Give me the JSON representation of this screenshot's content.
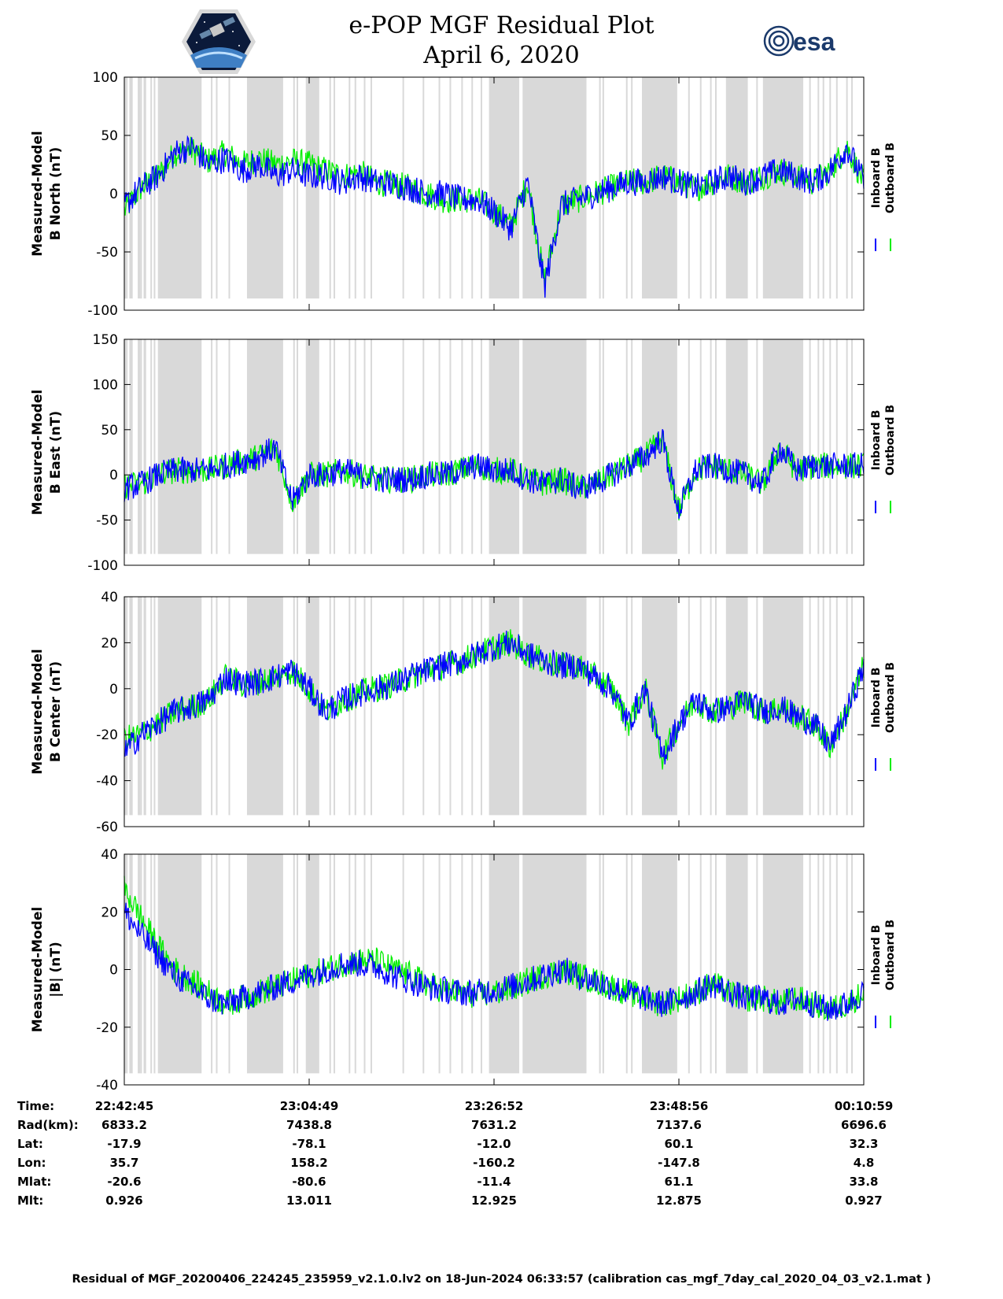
{
  "header": {
    "title": "e-POP MGF Residual Plot",
    "date": "April 6, 2020",
    "logo_left": "cassiope-mission-patch",
    "logo_right": "esa",
    "logo_right_text": "esa"
  },
  "colors": {
    "inboard": "#0000ff",
    "outboard": "#00ee00",
    "shading": "#d9d9d9"
  },
  "chart_data": [
    {
      "type": "line",
      "ylabel_line1": "Measured-Model",
      "ylabel_line2": "B North (nT)",
      "ylim": [
        -100,
        100
      ],
      "yticks": [
        100,
        50,
        0,
        -50,
        -100
      ],
      "tick_labels": [
        "100",
        "50",
        "0",
        "-50",
        "-100"
      ],
      "legend": [
        "Inboard B",
        "Outboard B"
      ],
      "legend_placement": "right",
      "x": [
        0,
        2,
        4,
        6,
        8,
        10,
        12,
        14,
        16,
        18,
        20,
        22,
        24,
        26,
        28,
        30,
        32,
        34,
        36,
        38,
        40,
        42,
        44,
        46,
        48,
        50,
        52,
        54,
        56,
        58,
        60,
        62,
        64,
        66,
        68,
        70,
        72,
        74,
        76,
        78,
        80,
        82,
        84,
        86,
        88
      ],
      "series": [
        {
          "name": "Inboard B",
          "values": [
            -10,
            5,
            15,
            35,
            40,
            25,
            30,
            20,
            25,
            15,
            20,
            15,
            15,
            10,
            15,
            10,
            8,
            5,
            0,
            0,
            -5,
            -5,
            -15,
            -30,
            10,
            -80,
            -10,
            -5,
            0,
            5,
            10,
            10,
            15,
            10,
            5,
            10,
            15,
            10,
            15,
            20,
            15,
            10,
            20,
            40,
            10
          ]
        },
        {
          "name": "Outboard B",
          "values": [
            -15,
            5,
            15,
            35,
            38,
            28,
            35,
            25,
            30,
            25,
            28,
            25,
            20,
            15,
            18,
            10,
            8,
            5,
            0,
            -5,
            -5,
            -5,
            -15,
            -28,
            10,
            -75,
            -10,
            -5,
            0,
            5,
            10,
            10,
            15,
            10,
            5,
            10,
            15,
            10,
            15,
            20,
            15,
            10,
            20,
            40,
            10
          ]
        }
      ]
    },
    {
      "type": "line",
      "ylabel_line1": "Measured-Model",
      "ylabel_line2": "B East (nT)",
      "ylim": [
        -100,
        150
      ],
      "yticks": [
        150,
        100,
        50,
        0,
        -50,
        -100
      ],
      "tick_labels": [
        "150",
        "100",
        "50",
        "0",
        "-50",
        "-100"
      ],
      "legend": [
        "Inboard B",
        "Outboard B"
      ],
      "legend_placement": "right",
      "x": [
        0,
        2,
        4,
        6,
        8,
        10,
        12,
        14,
        16,
        18,
        20,
        22,
        24,
        26,
        28,
        30,
        32,
        34,
        36,
        38,
        40,
        42,
        44,
        46,
        48,
        50,
        52,
        54,
        56,
        58,
        60,
        62,
        64,
        66,
        68,
        70,
        72,
        74,
        76,
        78,
        80,
        82,
        84,
        86,
        88
      ],
      "series": [
        {
          "name": "Inboard B",
          "values": [
            -15,
            -10,
            0,
            5,
            5,
            5,
            10,
            15,
            20,
            30,
            -30,
            0,
            0,
            5,
            0,
            -5,
            -5,
            -5,
            0,
            0,
            5,
            10,
            5,
            5,
            -5,
            -10,
            -5,
            -15,
            -10,
            0,
            10,
            20,
            40,
            -40,
            5,
            10,
            5,
            0,
            -10,
            30,
            5,
            10,
            10,
            10,
            10
          ]
        },
        {
          "name": "Outboard B",
          "values": [
            -12,
            -10,
            0,
            5,
            5,
            5,
            10,
            15,
            20,
            30,
            -30,
            0,
            0,
            5,
            0,
            -5,
            -5,
            -5,
            0,
            0,
            5,
            10,
            5,
            5,
            -5,
            -10,
            -5,
            -15,
            -10,
            0,
            10,
            20,
            40,
            -40,
            5,
            10,
            5,
            0,
            -10,
            30,
            5,
            10,
            10,
            10,
            10
          ]
        }
      ]
    },
    {
      "type": "line",
      "ylabel_line1": "Measured-Model",
      "ylabel_line2": "B Center (nT)",
      "ylim": [
        -60,
        40
      ],
      "yticks": [
        40,
        20,
        0,
        -20,
        -40,
        -60
      ],
      "tick_labels": [
        "40",
        "20",
        "0",
        "-20",
        "-40",
        "-60"
      ],
      "legend": [
        "Inboard B",
        "Outboard B"
      ],
      "legend_placement": "right",
      "x": [
        0,
        2,
        4,
        6,
        8,
        10,
        12,
        14,
        16,
        18,
        20,
        22,
        24,
        26,
        28,
        30,
        32,
        34,
        36,
        38,
        40,
        42,
        44,
        46,
        48,
        50,
        52,
        54,
        56,
        58,
        60,
        62,
        64,
        66,
        68,
        70,
        72,
        74,
        76,
        78,
        80,
        82,
        84,
        86,
        88
      ],
      "series": [
        {
          "name": "Inboard B",
          "values": [
            -28,
            -20,
            -15,
            -10,
            -8,
            -5,
            5,
            2,
            3,
            5,
            8,
            0,
            -10,
            -5,
            -2,
            0,
            2,
            5,
            8,
            10,
            12,
            15,
            18,
            20,
            15,
            12,
            10,
            10,
            5,
            0,
            -15,
            0,
            -30,
            -15,
            -5,
            -10,
            -8,
            -5,
            -10,
            -8,
            -12,
            -15,
            -25,
            -10,
            10
          ]
        },
        {
          "name": "Outboard B",
          "values": [
            -22,
            -20,
            -15,
            -10,
            -8,
            -5,
            5,
            2,
            3,
            5,
            8,
            0,
            -10,
            -5,
            -2,
            0,
            2,
            5,
            8,
            10,
            12,
            15,
            18,
            20,
            15,
            12,
            10,
            10,
            5,
            0,
            -15,
            0,
            -30,
            -15,
            -5,
            -10,
            -8,
            -5,
            -10,
            -8,
            -12,
            -15,
            -25,
            -10,
            10
          ]
        }
      ]
    },
    {
      "type": "line",
      "ylabel_line1": "Measured-Model",
      "ylabel_line2": "|B| (nT)",
      "ylim": [
        -40,
        40
      ],
      "yticks": [
        40,
        20,
        0,
        -20,
        -40
      ],
      "tick_labels": [
        "40",
        "20",
        "0",
        "-20",
        "-40"
      ],
      "legend": [
        "Inboard B",
        "Outboard B"
      ],
      "legend_placement": "right",
      "x": [
        0,
        2,
        4,
        6,
        8,
        10,
        12,
        14,
        16,
        18,
        20,
        22,
        24,
        26,
        28,
        30,
        32,
        34,
        36,
        38,
        40,
        42,
        44,
        46,
        48,
        50,
        52,
        54,
        56,
        58,
        60,
        62,
        64,
        66,
        68,
        70,
        72,
        74,
        76,
        78,
        80,
        82,
        84,
        86,
        88
      ],
      "series": [
        {
          "name": "Inboard B",
          "values": [
            20,
            12,
            5,
            -2,
            -6,
            -10,
            -12,
            -10,
            -8,
            -6,
            -4,
            -2,
            0,
            2,
            2,
            1,
            -2,
            -4,
            -6,
            -7,
            -8,
            -8,
            -7,
            -6,
            -4,
            -2,
            0,
            -2,
            -4,
            -6,
            -8,
            -10,
            -12,
            -10,
            -8,
            -5,
            -8,
            -10,
            -10,
            -12,
            -10,
            -12,
            -14,
            -12,
            -8
          ]
        },
        {
          "name": "Outboard B",
          "values": [
            28,
            18,
            8,
            0,
            -4,
            -8,
            -12,
            -10,
            -8,
            -6,
            -4,
            -2,
            0,
            2,
            3,
            3,
            0,
            -2,
            -5,
            -7,
            -8,
            -9,
            -8,
            -7,
            -4,
            -2,
            0,
            -2,
            -4,
            -6,
            -8,
            -10,
            -12,
            -10,
            -8,
            -5,
            -8,
            -10,
            -10,
            -12,
            -10,
            -12,
            -14,
            -12,
            -8
          ]
        }
      ]
    }
  ],
  "xaxis": {
    "row_labels": [
      "Time:",
      "Rad(km):",
      "Lat:",
      "Lon:",
      "Mlat:",
      "Mlt:"
    ],
    "columns": [
      [
        "22:42:45",
        "6833.2",
        "-17.9",
        "35.7",
        "-20.6",
        "0.926"
      ],
      [
        "23:04:49",
        "7438.8",
        "-78.1",
        "158.2",
        "-80.6",
        "13.011"
      ],
      [
        "23:26:52",
        "7631.2",
        "-12.0",
        "-160.2",
        "-11.4",
        "12.925"
      ],
      [
        "23:48:56",
        "7137.6",
        "60.1",
        "-147.8",
        "61.1",
        "12.875"
      ],
      [
        "00:10:59",
        "6696.6",
        "32.3",
        "4.8",
        "33.8",
        "0.927"
      ]
    ]
  },
  "footer": "Residual of MGF_20200406_224245_235959_v2.1.0.lv2 on 18-Jun-2024 06:33:57 (calibration cas_mgf_7day_cal_2020_04_03_v2.1.mat )"
}
